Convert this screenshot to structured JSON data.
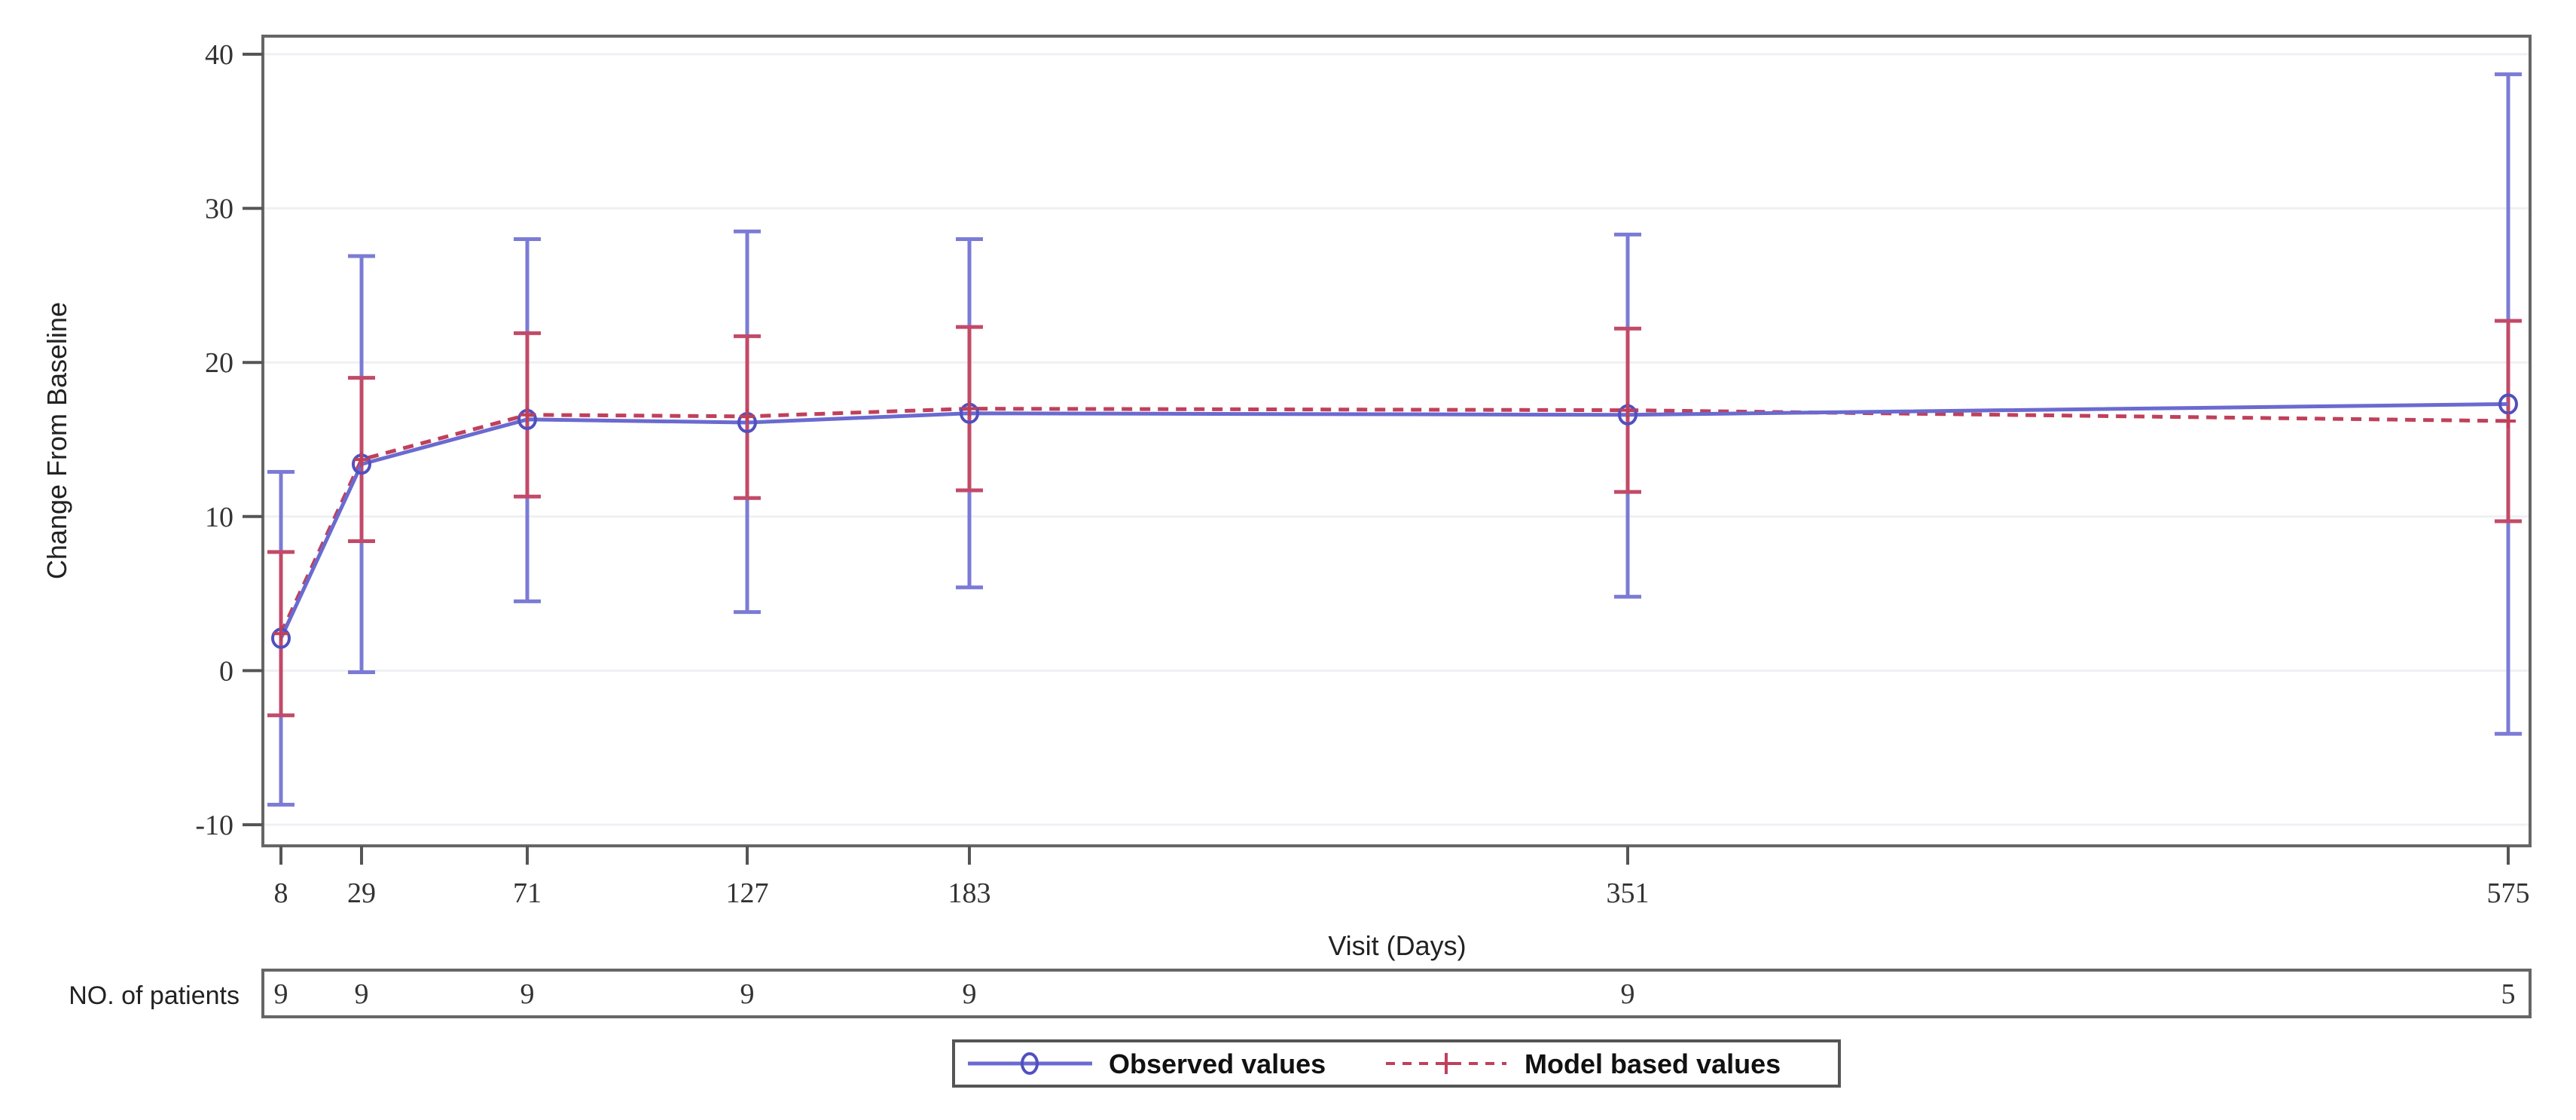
{
  "chart_data": {
    "type": "line",
    "title": "",
    "xlabel": "Visit (Days)",
    "ylabel": "Change From Baseline",
    "ylim": [
      -10,
      40
    ],
    "yticks": [
      -10,
      0,
      10,
      20,
      30,
      40
    ],
    "x": [
      8,
      29,
      71,
      127,
      183,
      351,
      575
    ],
    "x_tick_labels": [
      "8",
      "29",
      "71",
      "127",
      "183",
      "351",
      "575"
    ],
    "grid": true,
    "legend_position": "bottom",
    "series": [
      {
        "name": "Observed values",
        "color": "#6a6ad0",
        "style": "solid",
        "marker": "circle",
        "values": [
          2.1,
          13.4,
          16.3,
          16.1,
          16.7,
          16.6,
          17.3
        ],
        "lower": [
          -8.7,
          -0.1,
          4.5,
          3.8,
          5.4,
          4.8,
          -4.1
        ],
        "upper": [
          12.9,
          26.9,
          28.0,
          28.5,
          28.0,
          28.3,
          38.7
        ]
      },
      {
        "name": "Model based values",
        "color": "#c0405a",
        "style": "dashed",
        "marker": "plus",
        "values": [
          2.4,
          13.7,
          16.6,
          16.5,
          17.0,
          16.9,
          16.2
        ],
        "lower": [
          -2.9,
          8.4,
          11.3,
          11.2,
          11.7,
          11.6,
          9.7
        ],
        "upper": [
          7.7,
          19.0,
          21.9,
          21.7,
          22.3,
          22.2,
          22.7
        ]
      }
    ],
    "risk_table": {
      "label": "NO. of patients",
      "values": [
        9,
        9,
        9,
        9,
        9,
        9,
        5
      ]
    }
  },
  "labels": {
    "ylabel": "Change From Baseline",
    "xlabel": "Visit (Days)",
    "risk_label": "NO. of patients",
    "legend_observed": "Observed values",
    "legend_model": "Model based values"
  }
}
